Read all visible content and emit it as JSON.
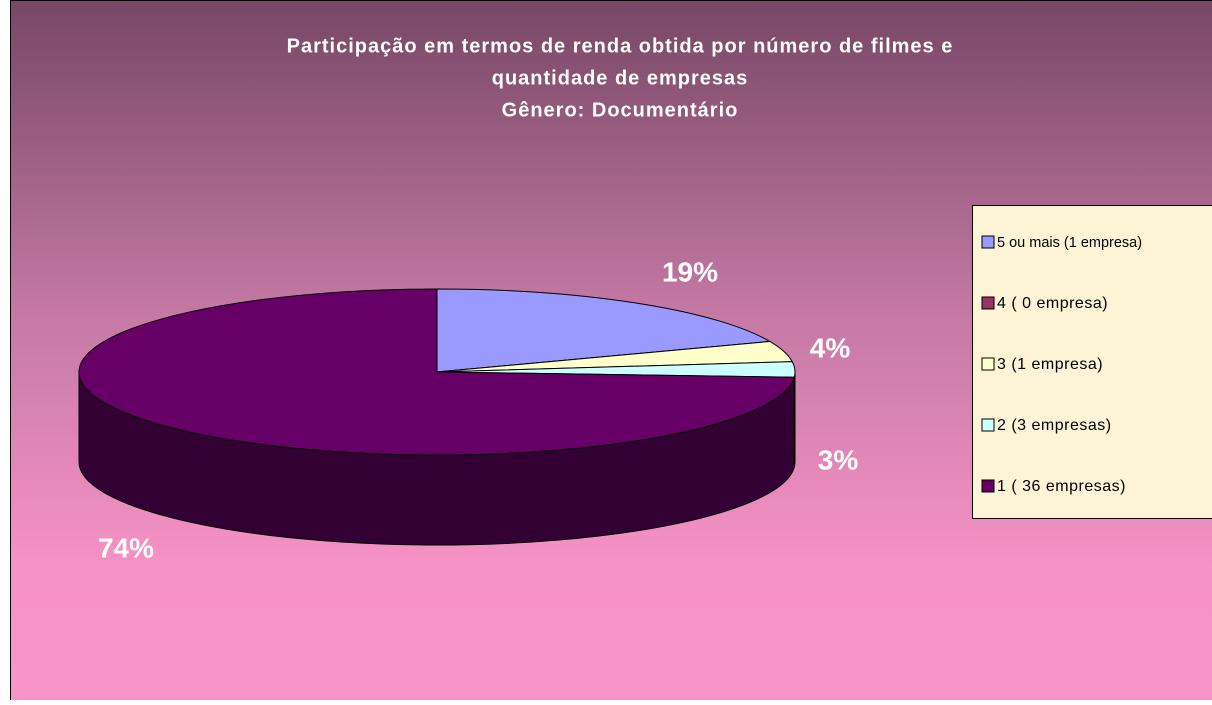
{
  "chart_data": {
    "type": "pie3d",
    "title": [
      "Participação em termos de renda obtida por número de filmes e",
      "quantidade de empresas",
      "Gênero: Documentário"
    ],
    "categories": [
      "5 ou mais (1 empresa)",
      "4 ( 0 empresa)",
      "3 (1 empresa)",
      "2 (3 empresas)",
      "1 ( 36 empresas)"
    ],
    "values": [
      19,
      0,
      4,
      3,
      74
    ],
    "value_labels": [
      "19%",
      null,
      "4%",
      "3%",
      "74%"
    ],
    "colors": [
      "#9999ff",
      "#993366",
      "#ffffcc",
      "#ccffff",
      "#660066"
    ],
    "legend": "right"
  }
}
